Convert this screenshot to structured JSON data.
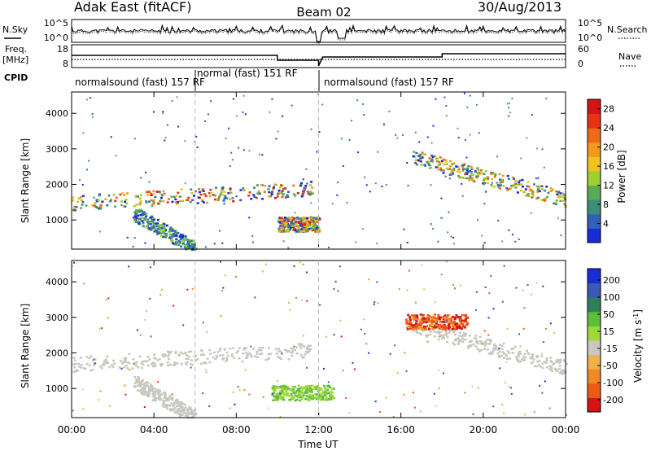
{
  "header": {
    "title": "Adak East (fitACF)",
    "beam": "Beam 02",
    "date": "30/Aug/2013"
  },
  "labels": {
    "nsky": "N.Sky",
    "nsearch": "N.Search",
    "freq_line1": "Freq.",
    "freq_line2": "[MHz]",
    "nave": "Nave",
    "cpid": "CPID",
    "xlabel": "Time UT",
    "ylabel": "Slant Range [km]",
    "power_label": "Power [dB]",
    "velocity_label": "Velocity [m s",
    "velocity_sup": "-1",
    "velocity_close": "]"
  },
  "noise_panel": {
    "left_ticks": [
      "10^5",
      "10^0"
    ],
    "right_ticks": [
      "10^5",
      "10^0"
    ]
  },
  "freq_panel": {
    "left_ticks": [
      "18",
      "8"
    ],
    "right_ticks": [
      "60",
      "0"
    ]
  },
  "cpid_segments": [
    {
      "label": "normalsound (fast) 157 RF",
      "start": 0,
      "end": 6
    },
    {
      "label": "normal (fast) 151 RF",
      "start": 6,
      "end": 12
    },
    {
      "label": "normalsound (fast) 157 RF",
      "start": 12,
      "end": 24
    }
  ],
  "colors": {
    "power_scale": [
      "#1a2bd9",
      "#2f62b8",
      "#3b8f7a",
      "#5bab55",
      "#9dcf2e",
      "#f2c21a",
      "#f29a1a",
      "#ef6a14",
      "#e83214",
      "#d41414"
    ],
    "velocity_scale": [
      "#1a2bd9",
      "#3a59b8",
      "#2f7f5c",
      "#5cbf3a",
      "#a0d838",
      "#c8c8c0",
      "#f2b048",
      "#f28a22",
      "#ec5a14",
      "#d41414"
    ]
  },
  "chart_data": [
    {
      "type": "heatmap",
      "name": "Power",
      "x_unit": "hours UT",
      "y_unit": "km",
      "xlim": [
        0,
        24
      ],
      "ylim": [
        180,
        4600
      ],
      "xticks": [
        "00:00",
        "04:00",
        "08:00",
        "12:00",
        "16:00",
        "20:00",
        "00:00"
      ],
      "yticks": [
        1000,
        2000,
        3000,
        4000
      ],
      "colorbar": {
        "label": "Power [dB]",
        "ticks": [
          4,
          8,
          12,
          16,
          20,
          24,
          28
        ],
        "range": [
          0,
          30
        ]
      },
      "features": [
        {
          "desc": "main band",
          "x": [
            0,
            11.7
          ],
          "y_center": [
            1500,
            1900
          ],
          "max_power": 28
        },
        {
          "desc": "descending band",
          "x": [
            3,
            6
          ],
          "y": [
            1200,
            200
          ],
          "max_power": 14
        },
        {
          "desc": "evening band",
          "x": [
            16.5,
            24
          ],
          "y_center": [
            2800,
            1600
          ],
          "max_power": 24
        },
        {
          "desc": "near-range low band",
          "x": [
            10,
            12
          ],
          "y_center": 900,
          "max_power": 28
        }
      ]
    },
    {
      "type": "heatmap",
      "name": "Velocity",
      "x_unit": "hours UT",
      "y_unit": "km",
      "xlim": [
        0,
        24
      ],
      "ylim": [
        180,
        4600
      ],
      "xticks": [
        "00:00",
        "04:00",
        "08:00",
        "12:00",
        "16:00",
        "20:00",
        "00:00"
      ],
      "yticks": [
        1000,
        2000,
        3000,
        4000
      ],
      "colorbar": {
        "label": "Velocity [m s-1]",
        "ticks": [
          200,
          100,
          50,
          15,
          -15,
          -50,
          -100,
          -200
        ]
      },
      "features": [
        {
          "desc": "ground scatter band",
          "x": [
            0,
            11.7
          ],
          "y_center": [
            1700,
            2100
          ],
          "velocity": 0
        },
        {
          "desc": "descending ground scatter",
          "x": [
            3,
            6
          ],
          "y": [
            1200,
            200
          ],
          "velocity": 0
        },
        {
          "desc": "positive flow",
          "x": [
            9.7,
            12.7
          ],
          "y_center": 900,
          "velocity": 40
        },
        {
          "desc": "evening ground scatter",
          "x": [
            16.5,
            24
          ],
          "y_center": [
            2800,
            1600
          ],
          "velocity": 0
        },
        {
          "desc": "ionospheric echoes",
          "x": [
            16.2,
            19.2
          ],
          "y_center": 2900,
          "velocity": -150
        }
      ]
    }
  ]
}
